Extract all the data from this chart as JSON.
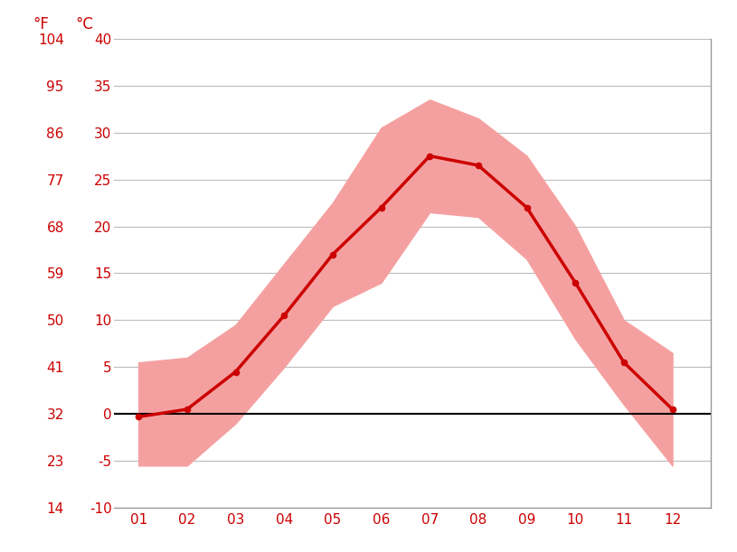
{
  "months": [
    1,
    2,
    3,
    4,
    5,
    6,
    7,
    8,
    9,
    10,
    11,
    12
  ],
  "month_labels": [
    "01",
    "02",
    "03",
    "04",
    "05",
    "06",
    "07",
    "08",
    "09",
    "10",
    "11",
    "12"
  ],
  "mean_temp_c": [
    -0.3,
    0.5,
    4.5,
    10.5,
    17.0,
    22.0,
    27.5,
    26.5,
    22.0,
    14.0,
    5.5,
    0.5
  ],
  "max_avg_c": [
    5.5,
    6.0,
    9.5,
    16.0,
    22.5,
    30.5,
    33.5,
    31.5,
    27.5,
    20.0,
    10.0,
    6.5
  ],
  "min_avg_c": [
    -5.5,
    -5.5,
    -1.0,
    5.0,
    11.5,
    14.0,
    21.5,
    21.0,
    16.5,
    8.0,
    1.0,
    -5.5
  ],
  "line_color": "#cc0000",
  "band_color": "#f5a0a0",
  "zero_line_color": "#000000",
  "grid_color": "#bbbbbb",
  "label_color": "#cc0000",
  "ylim_c": [
    -10,
    40
  ],
  "yticks_c": [
    -10,
    -5,
    0,
    5,
    10,
    15,
    20,
    25,
    30,
    35,
    40
  ],
  "yticks_f": [
    14,
    23,
    32,
    41,
    50,
    59,
    68,
    77,
    86,
    95,
    104
  ],
  "bg_color": "#ffffff",
  "figsize": [
    8.15,
    6.11
  ],
  "dpi": 100
}
